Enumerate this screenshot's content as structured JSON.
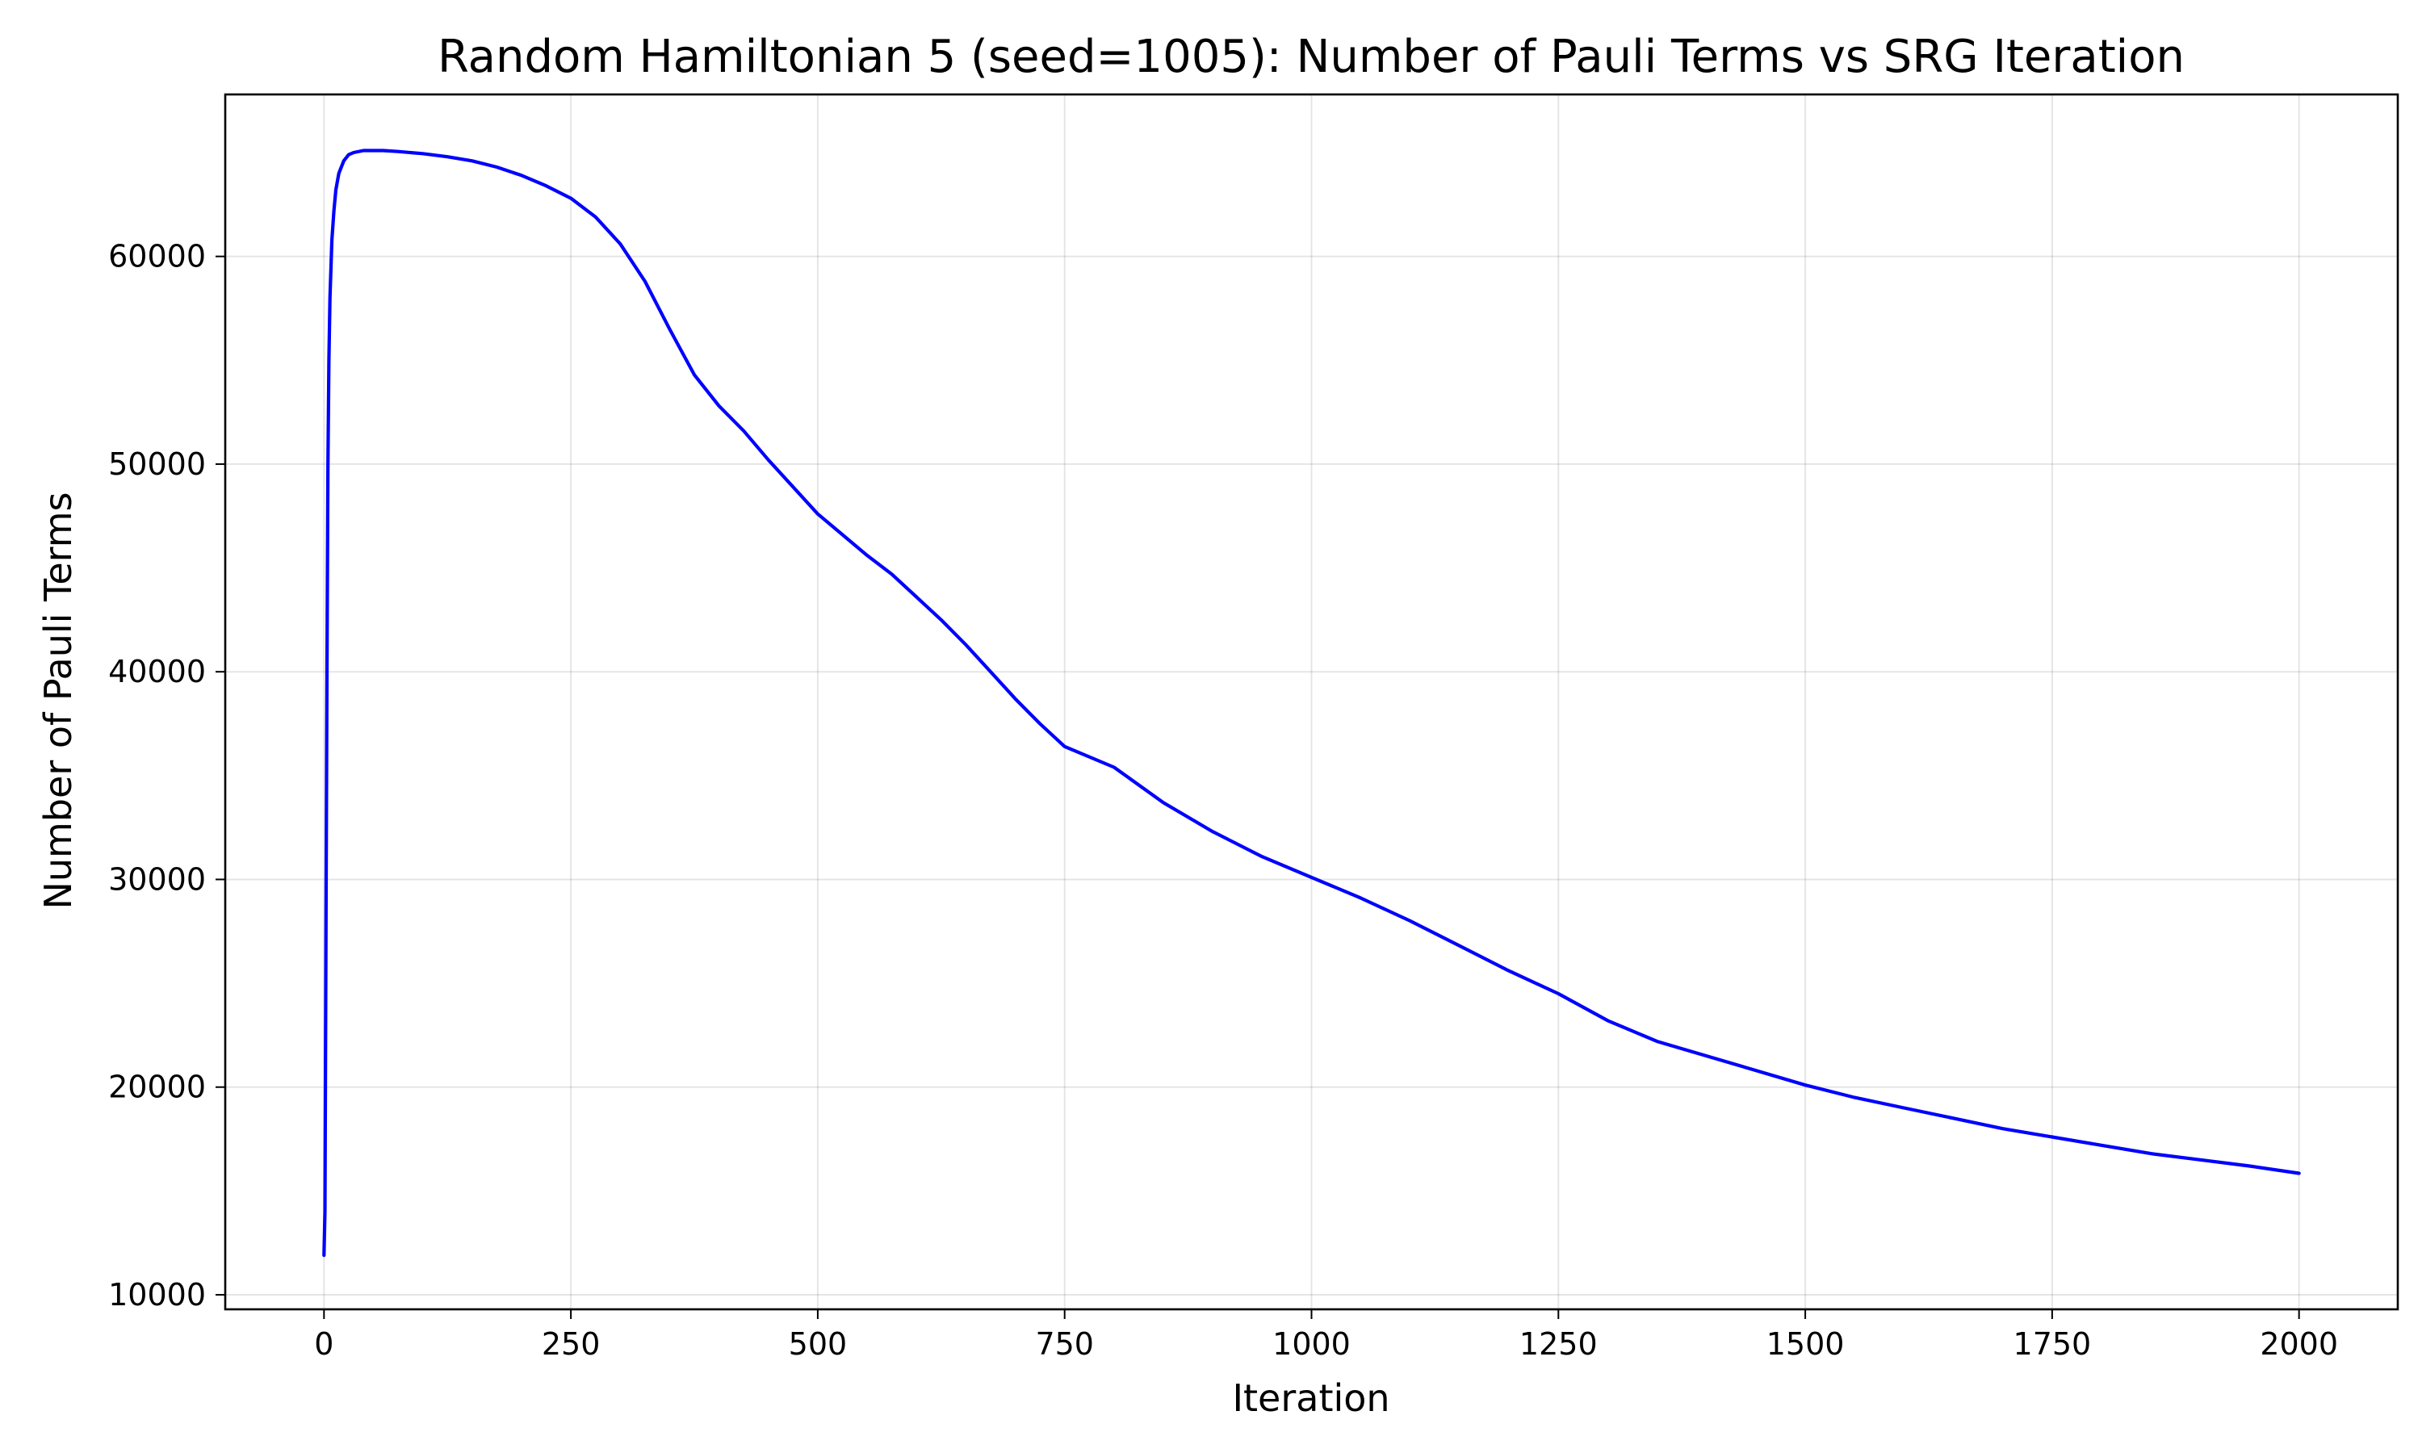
{
  "chart_data": {
    "type": "line",
    "title": "Random Hamiltonian 5 (seed=1005): Number of Pauli Terms vs SRG Iteration",
    "xlabel": "Iteration",
    "ylabel": "Number of Pauli Terms",
    "xlim": [
      -100,
      2100
    ],
    "ylim": [
      9300,
      67800
    ],
    "xticks": [
      0,
      250,
      500,
      750,
      1000,
      1250,
      1500,
      1750,
      2000
    ],
    "xtick_labels": [
      "0",
      "250",
      "500",
      "750",
      "1000",
      "1250",
      "1500",
      "1750",
      "2000"
    ],
    "yticks": [
      10000,
      20000,
      30000,
      40000,
      50000,
      60000
    ],
    "ytick_labels": [
      "10000",
      "20000",
      "30000",
      "40000",
      "50000",
      "60000"
    ],
    "grid": true,
    "legend": false,
    "series": [
      {
        "color": "#0000ff",
        "x": [
          0,
          1,
          2,
          3,
          4,
          5,
          6,
          8,
          10,
          12,
          15,
          20,
          25,
          30,
          40,
          50,
          60,
          75,
          100,
          125,
          150,
          175,
          200,
          225,
          250,
          275,
          300,
          325,
          350,
          375,
          400,
          425,
          450,
          475,
          500,
          525,
          550,
          575,
          600,
          625,
          650,
          675,
          700,
          725,
          750,
          800,
          850,
          900,
          950,
          1000,
          1050,
          1100,
          1150,
          1200,
          1250,
          1300,
          1350,
          1400,
          1450,
          1500,
          1550,
          1600,
          1650,
          1700,
          1750,
          1800,
          1850,
          1900,
          1950,
          2000
        ],
        "y": [
          11900,
          14000,
          28000,
          40000,
          50000,
          55000,
          58000,
          60800,
          62200,
          63200,
          64000,
          64600,
          64900,
          65000,
          65100,
          65100,
          65100,
          65050,
          64950,
          64800,
          64600,
          64300,
          63900,
          63400,
          62800,
          61900,
          60600,
          58800,
          56500,
          54300,
          52800,
          51600,
          50200,
          48900,
          47600,
          46600,
          45600,
          44700,
          43600,
          42500,
          41300,
          40000,
          38700,
          37500,
          36400,
          35400,
          33700,
          32300,
          31100,
          30100,
          29100,
          28000,
          26800,
          25600,
          24500,
          23200,
          22200,
          21500,
          20800,
          20100,
          19500,
          19000,
          18500,
          18000,
          17600,
          17200,
          16800,
          16500,
          16200,
          15850
        ]
      }
    ]
  }
}
